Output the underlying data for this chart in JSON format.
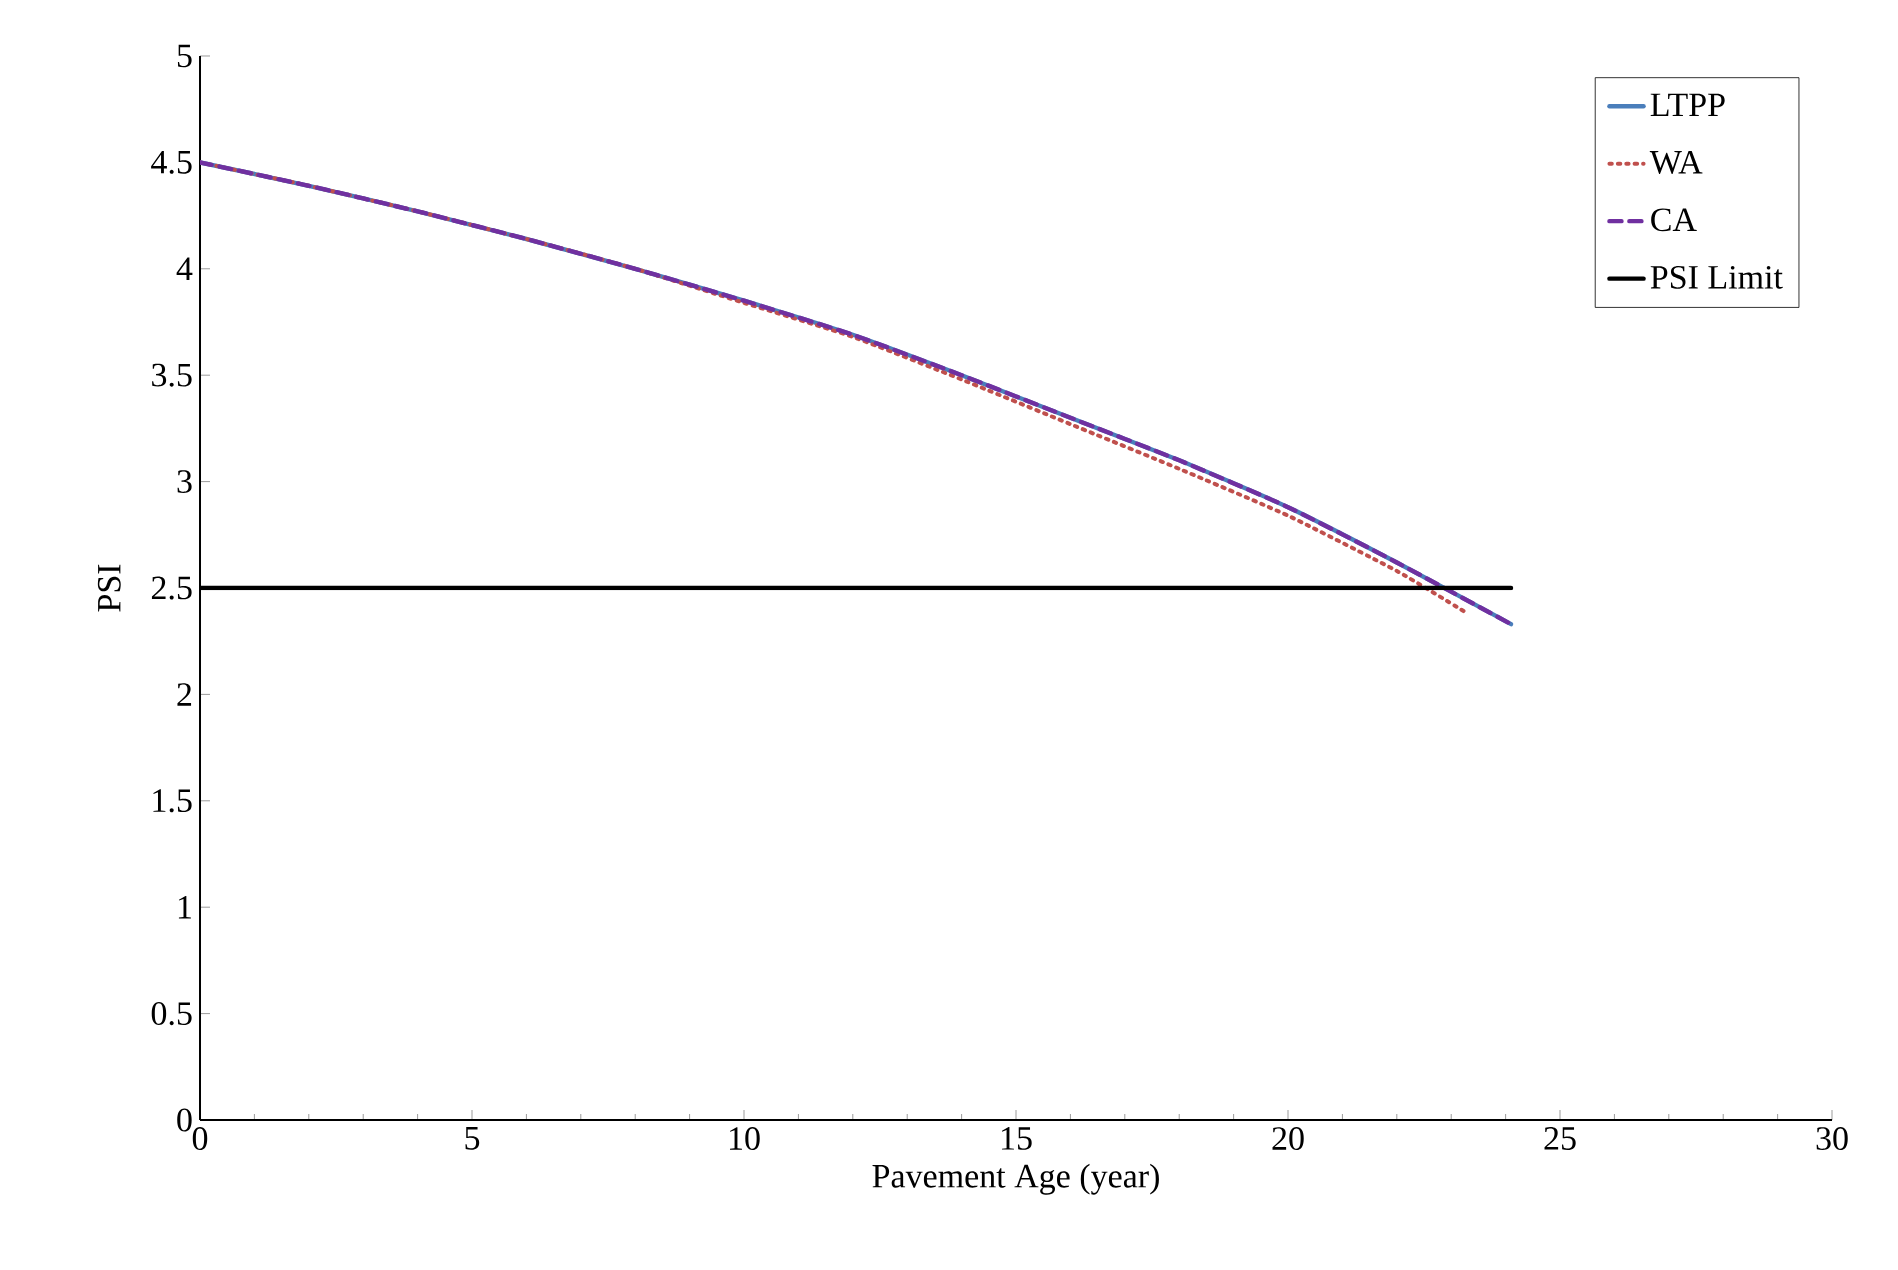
{
  "chart_data": {
    "type": "line",
    "xlabel": "Pavement Age (year)",
    "ylabel": "PSI",
    "xlim": [
      0,
      30
    ],
    "ylim": [
      0,
      5
    ],
    "xticks": [
      0,
      5,
      10,
      15,
      20,
      25,
      30
    ],
    "yticks": [
      0,
      0.5,
      1,
      1.5,
      2,
      2.5,
      3,
      3.5,
      4,
      4.5,
      5
    ],
    "grid": false,
    "legend": "top right",
    "series": [
      {
        "name": "LTPP",
        "color": "#4a7ebb",
        "line_style": "solid",
        "x": [
          0,
          2,
          4,
          6,
          8,
          10,
          12,
          14,
          16,
          18,
          20,
          22,
          24.1
        ],
        "values": [
          4.5,
          4.39,
          4.27,
          4.14,
          4.0,
          3.85,
          3.69,
          3.5,
          3.3,
          3.1,
          2.88,
          2.62,
          2.33
        ]
      },
      {
        "name": "WA",
        "color": "#c0504d",
        "line_style": "dotted",
        "x": [
          0,
          2,
          4,
          6,
          8,
          10,
          12,
          14,
          16,
          18,
          20,
          22,
          23.3
        ],
        "values": [
          4.5,
          4.39,
          4.27,
          4.14,
          4.0,
          3.84,
          3.68,
          3.48,
          3.27,
          3.06,
          2.84,
          2.58,
          2.38
        ]
      },
      {
        "name": "CA",
        "color": "#7030a0",
        "line_style": "dashed",
        "x": [
          0,
          2,
          4,
          6,
          8,
          10,
          12,
          14,
          16,
          18,
          20,
          22,
          24.1
        ],
        "values": [
          4.5,
          4.39,
          4.27,
          4.14,
          4.0,
          3.85,
          3.69,
          3.5,
          3.3,
          3.1,
          2.88,
          2.62,
          2.33
        ]
      },
      {
        "name": "PSI Limit",
        "color": "#000000",
        "line_style": "solid",
        "x": [
          0,
          24.1
        ],
        "values": [
          2.5,
          2.5
        ]
      }
    ]
  }
}
